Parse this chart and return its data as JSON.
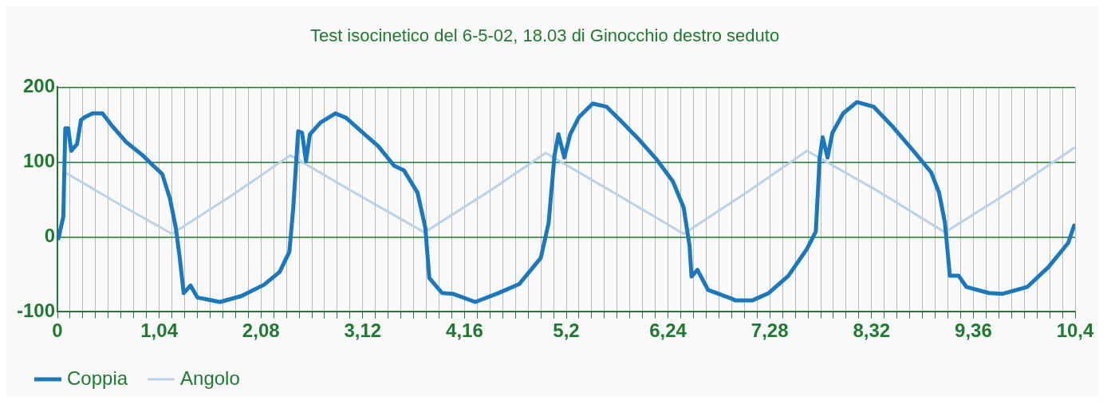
{
  "chart_data": {
    "type": "line",
    "title": "Test isocinetico del 6-5-02, 18.03 di Ginocchio destro seduto",
    "xlim": [
      0,
      10.4
    ],
    "ylim": [
      -100,
      200
    ],
    "yticks": [
      -100,
      0,
      100,
      200
    ],
    "xticks": [
      {
        "value": 0,
        "label": "0"
      },
      {
        "value": 0.13,
        "label": null
      },
      {
        "value": 0.26,
        "label": null
      },
      {
        "value": 0.39,
        "label": null
      },
      {
        "value": 0.52,
        "label": null
      },
      {
        "value": 0.65,
        "label": null
      },
      {
        "value": 0.78,
        "label": null
      },
      {
        "value": 0.91,
        "label": null
      },
      {
        "value": 1.04,
        "label": "1,04"
      },
      {
        "value": 1.17,
        "label": null
      },
      {
        "value": 1.3,
        "label": null
      },
      {
        "value": 1.43,
        "label": null
      },
      {
        "value": 1.56,
        "label": null
      },
      {
        "value": 1.69,
        "label": null
      },
      {
        "value": 1.82,
        "label": null
      },
      {
        "value": 1.95,
        "label": null
      },
      {
        "value": 2.08,
        "label": "2,08"
      },
      {
        "value": 2.21,
        "label": null
      },
      {
        "value": 2.34,
        "label": null
      },
      {
        "value": 2.47,
        "label": null
      },
      {
        "value": 2.6,
        "label": null
      },
      {
        "value": 2.73,
        "label": null
      },
      {
        "value": 2.86,
        "label": null
      },
      {
        "value": 2.99,
        "label": null
      },
      {
        "value": 3.12,
        "label": "3,12"
      },
      {
        "value": 3.25,
        "label": null
      },
      {
        "value": 3.38,
        "label": null
      },
      {
        "value": 3.51,
        "label": null
      },
      {
        "value": 3.64,
        "label": null
      },
      {
        "value": 3.77,
        "label": null
      },
      {
        "value": 3.9,
        "label": null
      },
      {
        "value": 4.03,
        "label": null
      },
      {
        "value": 4.16,
        "label": "4,16"
      },
      {
        "value": 4.29,
        "label": null
      },
      {
        "value": 4.42,
        "label": null
      },
      {
        "value": 4.55,
        "label": null
      },
      {
        "value": 4.68,
        "label": null
      },
      {
        "value": 4.81,
        "label": null
      },
      {
        "value": 4.94,
        "label": null
      },
      {
        "value": 5.07,
        "label": null
      },
      {
        "value": 5.2,
        "label": "5,2"
      },
      {
        "value": 5.33,
        "label": null
      },
      {
        "value": 5.46,
        "label": null
      },
      {
        "value": 5.59,
        "label": null
      },
      {
        "value": 5.72,
        "label": null
      },
      {
        "value": 5.85,
        "label": null
      },
      {
        "value": 5.98,
        "label": null
      },
      {
        "value": 6.11,
        "label": null
      },
      {
        "value": 6.24,
        "label": "6,24"
      },
      {
        "value": 6.37,
        "label": null
      },
      {
        "value": 6.5,
        "label": null
      },
      {
        "value": 6.63,
        "label": null
      },
      {
        "value": 6.76,
        "label": null
      },
      {
        "value": 6.89,
        "label": null
      },
      {
        "value": 7.02,
        "label": null
      },
      {
        "value": 7.15,
        "label": null
      },
      {
        "value": 7.28,
        "label": "7,28"
      },
      {
        "value": 7.41,
        "label": null
      },
      {
        "value": 7.54,
        "label": null
      },
      {
        "value": 7.67,
        "label": null
      },
      {
        "value": 7.8,
        "label": null
      },
      {
        "value": 7.93,
        "label": null
      },
      {
        "value": 8.06,
        "label": null
      },
      {
        "value": 8.19,
        "label": null
      },
      {
        "value": 8.32,
        "label": "8,32"
      },
      {
        "value": 8.45,
        "label": null
      },
      {
        "value": 8.58,
        "label": null
      },
      {
        "value": 8.71,
        "label": null
      },
      {
        "value": 8.84,
        "label": null
      },
      {
        "value": 8.97,
        "label": null
      },
      {
        "value": 9.1,
        "label": null
      },
      {
        "value": 9.23,
        "label": null
      },
      {
        "value": 9.36,
        "label": "9,36"
      },
      {
        "value": 9.49,
        "label": null
      },
      {
        "value": 9.62,
        "label": null
      },
      {
        "value": 9.75,
        "label": null
      },
      {
        "value": 9.88,
        "label": null
      },
      {
        "value": 10.01,
        "label": null
      },
      {
        "value": 10.14,
        "label": null
      },
      {
        "value": 10.27,
        "label": null
      },
      {
        "value": 10.4,
        "label": "10,4"
      }
    ],
    "grid": true,
    "legend": "bottom left",
    "marker": "none",
    "line_style": "solid",
    "series": [
      {
        "name": "Coppia",
        "color": "#1a78be",
        "x": [
          0.01,
          0.06,
          0.08,
          0.11,
          0.14,
          0.2,
          0.24,
          0.28,
          0.36,
          0.46,
          0.56,
          0.7,
          0.87,
          0.98,
          1.07,
          1.15,
          1.21,
          1.25,
          1.29,
          1.36,
          1.43,
          1.66,
          1.88,
          2.11,
          2.27,
          2.37,
          2.41,
          2.46,
          2.5,
          2.54,
          2.58,
          2.69,
          2.84,
          2.95,
          3.14,
          3.28,
          3.44,
          3.54,
          3.68,
          3.76,
          3.8,
          3.93,
          4.04,
          4.27,
          4.49,
          4.72,
          4.94,
          5.02,
          5.08,
          5.12,
          5.18,
          5.24,
          5.33,
          5.47,
          5.61,
          5.75,
          5.95,
          6.12,
          6.29,
          6.4,
          6.46,
          6.48,
          6.54,
          6.65,
          6.88,
          6.93,
          7.1,
          7.27,
          7.47,
          7.66,
          7.75,
          7.79,
          7.82,
          7.87,
          7.92,
          8.03,
          8.17,
          8.34,
          8.53,
          8.76,
          8.93,
          9.01,
          9.07,
          9.12,
          9.21,
          9.29,
          9.52,
          9.66,
          9.91,
          10.13,
          10.33,
          10.39
        ],
        "values": [
          -2,
          27,
          145,
          145,
          115,
          124,
          156,
          160,
          165,
          165,
          148,
          127,
          109,
          95,
          84,
          51,
          12,
          -28,
          -75,
          -65,
          -81,
          -87,
          -79,
          -64,
          -47,
          -20,
          39,
          141,
          139,
          101,
          137,
          153,
          165,
          159,
          137,
          121,
          95,
          89,
          59,
          12,
          -55,
          -75,
          -76,
          -87,
          -76,
          -63,
          -28,
          19,
          109,
          137,
          106,
          137,
          160,
          178,
          174,
          156,
          129,
          104,
          74,
          39,
          -12,
          -53,
          -44,
          -71,
          -82,
          -85,
          -85,
          -75,
          -52,
          -16,
          7,
          106,
          133,
          106,
          139,
          165,
          180,
          174,
          148,
          113,
          86,
          59,
          19,
          -52,
          -52,
          -67,
          -75,
          -76,
          -67,
          -40,
          -8,
          15
        ]
      },
      {
        "name": "Angolo",
        "color": "#b9d2ea",
        "x": [
          0.08,
          0.6,
          1.17,
          1.8,
          2.38,
          3.05,
          3.75,
          4.4,
          4.99,
          5.7,
          6.4,
          7.05,
          7.66,
          8.4,
          9.07,
          9.75,
          10.39
        ],
        "values": [
          86,
          46,
          4,
          57,
          109,
          58,
          6,
          60,
          112,
          58,
          4,
          60,
          115,
          60,
          6,
          62,
          119
        ]
      }
    ]
  }
}
